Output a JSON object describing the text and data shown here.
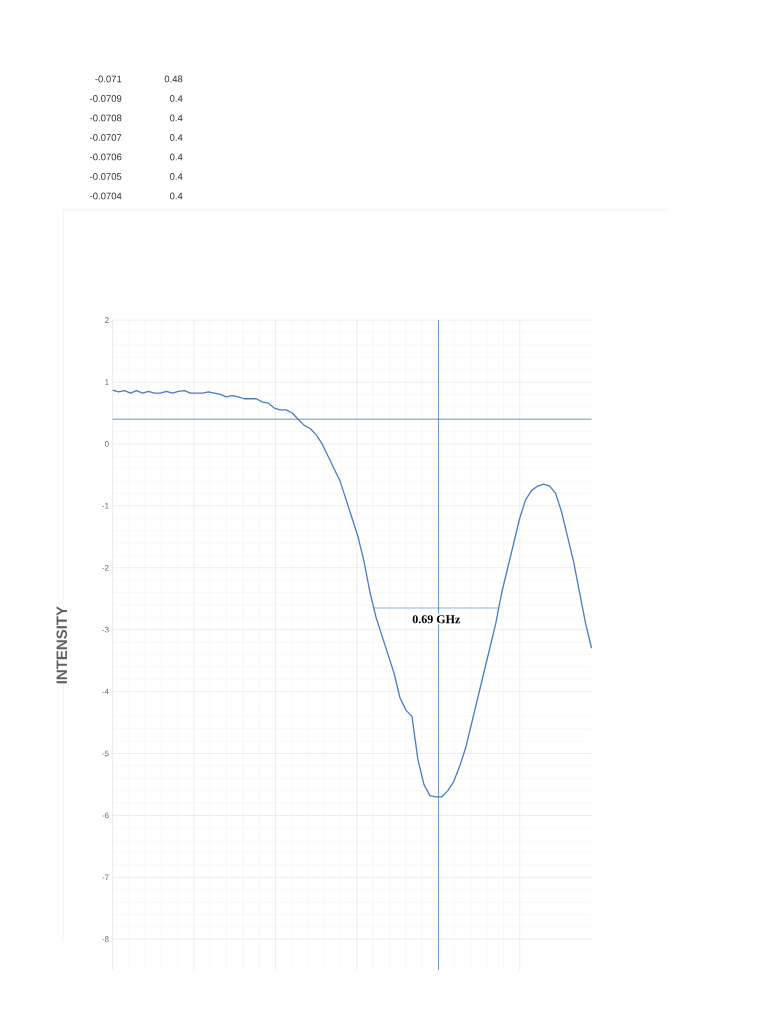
{
  "chart_data": {
    "type": "line",
    "ylabel": "INTENSITY",
    "categories": [
      null,
      null,
      null,
      null,
      null,
      null,
      null,
      null,
      null,
      null,
      null,
      null,
      null,
      null,
      null,
      null,
      null,
      null,
      null,
      null,
      null,
      null,
      null,
      null,
      null,
      null,
      null,
      null,
      null,
      null,
      null,
      null,
      null,
      null,
      null,
      null,
      null,
      null,
      null,
      null,
      null,
      null,
      null,
      null,
      null,
      null,
      null,
      null,
      null,
      null,
      null,
      null,
      null,
      null,
      null,
      null,
      null,
      null,
      null,
      null,
      null,
      null,
      null,
      null,
      null,
      null,
      null,
      null,
      null,
      null,
      null,
      null,
      null,
      null,
      null,
      null,
      null,
      null,
      null,
      null,
      null
    ],
    "series": [
      {
        "color": "#4a7cc0",
        "values": [
          0.87,
          0.84,
          0.86,
          0.82,
          0.86,
          0.82,
          0.85,
          0.82,
          0.82,
          0.85,
          0.82,
          0.85,
          0.86,
          0.82,
          0.82,
          0.82,
          0.84,
          0.82,
          0.8,
          0.76,
          0.78,
          0.76,
          0.73,
          0.73,
          0.73,
          0.68,
          0.66,
          0.58,
          0.55,
          0.55,
          0.5,
          0.4,
          0.3,
          0.25,
          0.15,
          0.0,
          -0.2,
          -0.4,
          -0.6,
          -0.9,
          -1.2,
          -1.5,
          -1.9,
          -2.4,
          -2.8,
          -3.1,
          -3.4,
          -3.7,
          -4.1,
          -4.3,
          -4.4,
          -5.1,
          -5.5,
          -5.68,
          -5.7,
          -5.7,
          -5.6,
          -5.45,
          -5.2,
          -4.9,
          -4.5,
          -4.1,
          -3.7,
          -3.3,
          -2.9,
          -2.4,
          -2.0,
          -1.6,
          -1.2,
          -0.9,
          -0.75,
          -0.68,
          -0.65,
          -0.68,
          -0.8,
          -1.1,
          -1.5,
          -1.9,
          -2.4,
          -2.9,
          -3.3
        ]
      }
    ],
    "ylim": [
      -8.5,
      2
    ],
    "yticks": [
      -8,
      -7,
      -6,
      -5,
      -4,
      -3,
      -2,
      -1,
      0,
      1,
      2
    ],
    "grid": true,
    "tick_labels": "y",
    "marker": "none",
    "line_style": "solid",
    "ref_lines": [
      {
        "axis": "y",
        "value": 0.4,
        "color": "#4a7cc0"
      },
      {
        "axis": "y",
        "value": -2.65,
        "label": "0.69 GHz",
        "color": "#4a7cc0"
      }
    ],
    "annotations": [
      "-0.071",
      "0.48",
      "-0.0709",
      "0.4",
      "-0.0708",
      "0.4",
      "-0.0707",
      "0.4",
      "-0.0706",
      "0.4",
      "-0.0705",
      "0.4",
      "-0.0704",
      "0.4"
    ]
  }
}
